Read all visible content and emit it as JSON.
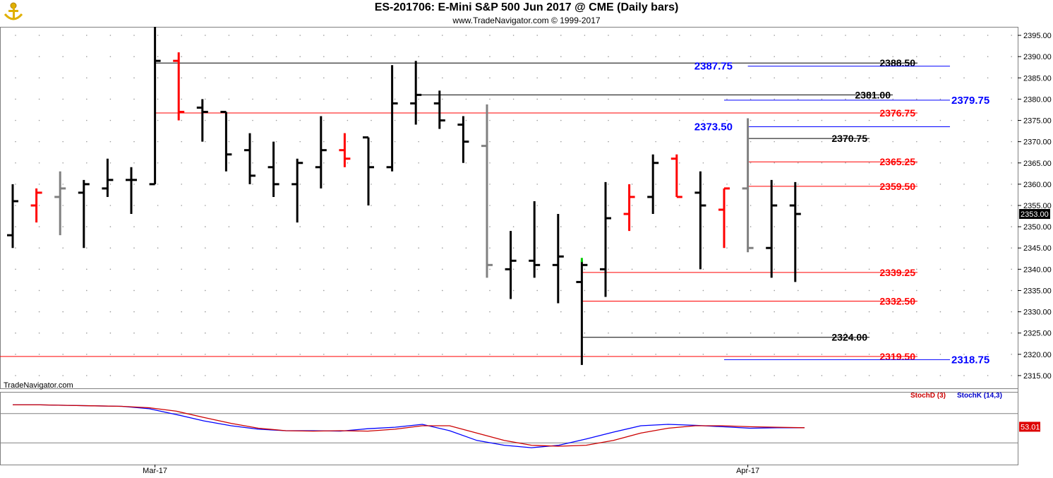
{
  "header": {
    "title": "ES-201706:  E-Mini S&P 500 Jun 2017 @ CME  (Daily bars)",
    "subtitle": "www.TradeNavigator.com © 1999-2017"
  },
  "watermark": "TradeNavigator.com",
  "indicator_legend": {
    "stoch_d": "StochD (3)",
    "stoch_k": "StochK (14,3)"
  },
  "colors": {
    "up": "#000000",
    "down": "#ff0000",
    "neutral": "#808080",
    "level_red": "#ff0000",
    "level_blue": "#0000ff",
    "level_black": "#000000",
    "stoch_d": "#cc0000",
    "stoch_k": "#0000cc"
  },
  "chart_data": {
    "type": "ohlc",
    "ylim": [
      2312,
      2397
    ],
    "yticks": [
      2315,
      2320,
      2325,
      2330,
      2335,
      2340,
      2345,
      2350,
      2355,
      2360,
      2365,
      2370,
      2375,
      2380,
      2385,
      2390,
      2395
    ],
    "x_labels": [
      {
        "label": "Mar-17",
        "bar": 6
      },
      {
        "label": "Apr-17",
        "bar": 31
      }
    ],
    "last_price": "2353.00",
    "bars": [
      {
        "o": 2348,
        "h": 2360,
        "l": 2345,
        "c": 2356,
        "color": "black"
      },
      {
        "o": 2355,
        "h": 2359,
        "l": 2351,
        "c": 2358,
        "color": "red"
      },
      {
        "o": 2357,
        "h": 2363,
        "l": 2348,
        "c": 2359,
        "color": "gray"
      },
      {
        "o": 2358,
        "h": 2361,
        "l": 2345,
        "c": 2360,
        "color": "black"
      },
      {
        "o": 2359,
        "h": 2366,
        "l": 2357,
        "c": 2361,
        "color": "black"
      },
      {
        "o": 2361,
        "h": 2364,
        "l": 2353,
        "c": 2361,
        "color": "black"
      },
      {
        "o": 2360,
        "h": 2397,
        "l": 2360,
        "c": 2389,
        "color": "black"
      },
      {
        "o": 2389,
        "h": 2391,
        "l": 2375,
        "c": 2377,
        "color": "red"
      },
      {
        "o": 2378,
        "h": 2380,
        "l": 2370,
        "c": 2377,
        "color": "black"
      },
      {
        "o": 2377,
        "h": 2377,
        "l": 2363,
        "c": 2367,
        "color": "black"
      },
      {
        "o": 2368,
        "h": 2372,
        "l": 2360,
        "c": 2362,
        "color": "black"
      },
      {
        "o": 2364,
        "h": 2370,
        "l": 2357,
        "c": 2360,
        "color": "black"
      },
      {
        "o": 2360,
        "h": 2366,
        "l": 2351,
        "c": 2365,
        "color": "black"
      },
      {
        "o": 2364,
        "h": 2376,
        "l": 2359,
        "c": 2368,
        "color": "black"
      },
      {
        "o": 2368,
        "h": 2372,
        "l": 2364,
        "c": 2366,
        "color": "red"
      },
      {
        "o": 2371,
        "h": 2371,
        "l": 2355,
        "c": 2364,
        "color": "black"
      },
      {
        "o": 2364,
        "h": 2388,
        "l": 2363,
        "c": 2379,
        "color": "black"
      },
      {
        "o": 2379,
        "h": 2389,
        "l": 2374,
        "c": 2381,
        "color": "black"
      },
      {
        "o": 2379,
        "h": 2382,
        "l": 2373,
        "c": 2375,
        "color": "black"
      },
      {
        "o": 2374,
        "h": 2376,
        "l": 2365,
        "c": 2370,
        "color": "black"
      },
      {
        "o": 2369,
        "h": 2378.75,
        "l": 2338,
        "c": 2341,
        "color": "gray"
      },
      {
        "o": 2340,
        "h": 2349,
        "l": 2333,
        "c": 2342,
        "color": "black"
      },
      {
        "o": 2342,
        "h": 2356,
        "l": 2338,
        "c": 2341,
        "color": "black"
      },
      {
        "o": 2341,
        "h": 2353,
        "l": 2332,
        "c": 2343,
        "color": "black"
      },
      {
        "o": 2337,
        "h": 2342,
        "l": 2317.5,
        "c": 2341,
        "color": "black"
      },
      {
        "o": 2340,
        "h": 2360.5,
        "l": 2333.5,
        "c": 2352,
        "color": "black"
      },
      {
        "o": 2353,
        "h": 2360,
        "l": 2349,
        "c": 2357,
        "color": "red"
      },
      {
        "o": 2357,
        "h": 2367,
        "l": 2353,
        "c": 2365,
        "color": "black"
      },
      {
        "o": 2366,
        "h": 2367,
        "l": 2357,
        "c": 2357,
        "color": "red"
      },
      {
        "o": 2358,
        "h": 2363,
        "l": 2340,
        "c": 2355,
        "color": "black"
      },
      {
        "o": 2354,
        "h": 2359,
        "l": 2345,
        "c": 2359,
        "color": "red"
      },
      {
        "o": 2359,
        "h": 2375.5,
        "l": 2344,
        "c": 2345,
        "color": "gray"
      },
      {
        "o": 2345,
        "h": 2361,
        "l": 2338,
        "c": 2355,
        "color": "black"
      },
      {
        "o": 2355,
        "h": 2360.5,
        "l": 2337,
        "c": 2353,
        "color": "black"
      }
    ],
    "levels": [
      {
        "label": "2388.50",
        "value": 2388.5,
        "color": "black",
        "from_bar": 6
      },
      {
        "label": "2387.75",
        "value": 2387.75,
        "color": "blue",
        "from_bar": 31
      },
      {
        "label": "2381.00",
        "value": 2381.0,
        "color": "black",
        "from_bar": 17
      },
      {
        "label": "2379.75",
        "value": 2379.75,
        "color": "blue",
        "from_bar": 30
      },
      {
        "label": "2376.75",
        "value": 2376.75,
        "color": "red",
        "from_bar": 6
      },
      {
        "label": "2373.50",
        "value": 2373.5,
        "color": "blue",
        "from_bar": 31
      },
      {
        "label": "2370.75",
        "value": 2370.75,
        "color": "black",
        "from_bar": 31
      },
      {
        "label": "2365.25",
        "value": 2365.25,
        "color": "red",
        "from_bar": 31
      },
      {
        "label": "2359.50",
        "value": 2359.5,
        "color": "red",
        "from_bar": 31
      },
      {
        "label": "2339.25",
        "value": 2339.25,
        "color": "red",
        "from_bar": 24
      },
      {
        "label": "2332.50",
        "value": 2332.5,
        "color": "red",
        "from_bar": 24
      },
      {
        "label": "2324.00",
        "value": 2324.0,
        "color": "black",
        "from_bar": 24
      },
      {
        "label": "2319.50",
        "value": 2319.5,
        "color": "red",
        "from_bar": -1
      },
      {
        "label": "2318.75",
        "value": 2318.75,
        "color": "blue",
        "from_bar": 30
      }
    ],
    "stochastic": {
      "last_value": "53.01",
      "stoch_d": [
        98,
        98,
        97,
        96,
        95,
        92,
        85,
        72,
        60,
        50,
        45,
        44,
        45,
        44,
        48,
        55,
        55,
        40,
        25,
        15,
        13,
        15,
        25,
        40,
        50,
        55,
        55,
        53,
        52,
        51
      ],
      "stoch_k": [
        98,
        98,
        97,
        96,
        95,
        90,
        78,
        65,
        55,
        48,
        45,
        45,
        44,
        49,
        52,
        58,
        45,
        25,
        15,
        10,
        15,
        28,
        42,
        55,
        58,
        56,
        53,
        50,
        51,
        51
      ]
    }
  }
}
